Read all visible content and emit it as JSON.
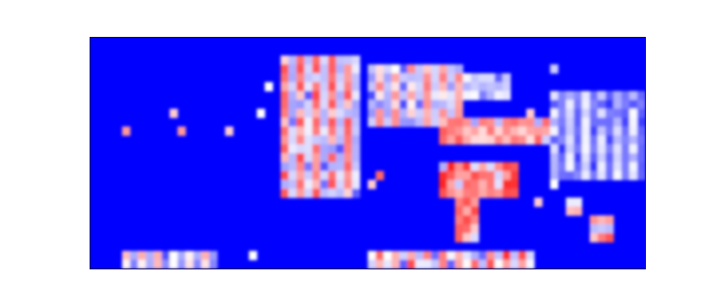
{
  "chart_data": {
    "type": "heatmap",
    "title": "",
    "xlabel": "",
    "ylabel": "",
    "axes_visible": false,
    "grid": false,
    "legend": "none",
    "colormap": {
      "low": "#0000ff",
      "mid": "#ffffff",
      "high": "#ff0000"
    },
    "value_range": [
      0,
      1
    ],
    "rows": 26,
    "cols": 70,
    "features": [
      {
        "kind": "block",
        "name": "harmonic-stack",
        "c0": 24,
        "c1": 33,
        "r0": 2,
        "r1": 17,
        "v": 0.78,
        "stripe": true
      },
      {
        "kind": "block",
        "name": "mid-segments",
        "c0": 35,
        "c1": 46,
        "r0": 3,
        "r1": 9,
        "v": 0.7,
        "stripe": true
      },
      {
        "kind": "block",
        "name": "upper-band",
        "c0": 42,
        "c1": 52,
        "r0": 4,
        "r1": 6,
        "v": 0.45,
        "stripe": false
      },
      {
        "kind": "block",
        "name": "streak-band",
        "c0": 44,
        "c1": 57,
        "r0": 9,
        "r1": 11,
        "v": 0.75,
        "stripe": false
      },
      {
        "kind": "block",
        "name": "diagonal-blob",
        "c0": 44,
        "c1": 53,
        "r0": 14,
        "r1": 17,
        "v": 0.85,
        "stripe": false
      },
      {
        "kind": "block",
        "name": "descending-trail",
        "c0": 46,
        "c1": 48,
        "r0": 17,
        "r1": 22,
        "v": 0.8,
        "stripe": false
      },
      {
        "kind": "block",
        "name": "bottom-burst",
        "c0": 35,
        "c1": 55,
        "r0": 24,
        "r1": 25,
        "v": 0.85,
        "stripe": true
      },
      {
        "kind": "block",
        "name": "right-columns",
        "c0": 58,
        "c1": 70,
        "r0": 6,
        "r1": 15,
        "v": 0.45,
        "stripe": true
      },
      {
        "kind": "block",
        "name": "right-spot-lower",
        "c0": 63,
        "c1": 65,
        "r0": 20,
        "r1": 22,
        "v": 0.8,
        "stripe": false
      },
      {
        "kind": "block",
        "name": "right-spot-mid",
        "c0": 60,
        "c1": 61,
        "r0": 18,
        "r1": 19,
        "v": 0.6,
        "stripe": false
      },
      {
        "kind": "block",
        "name": "left-bottom-dots",
        "c0": 4,
        "c1": 15,
        "r0": 24,
        "r1": 25,
        "v": 0.6,
        "stripe": true
      },
      {
        "kind": "dot",
        "c": 4,
        "r": 10,
        "v": 0.7
      },
      {
        "kind": "dot",
        "c": 10,
        "r": 8,
        "v": 0.6
      },
      {
        "kind": "dot",
        "c": 11,
        "r": 10,
        "v": 0.7
      },
      {
        "kind": "dot",
        "c": 17,
        "r": 10,
        "v": 0.6
      },
      {
        "kind": "dot",
        "c": 21,
        "r": 8,
        "v": 0.5
      },
      {
        "kind": "dot",
        "c": 22,
        "r": 5,
        "v": 0.5
      },
      {
        "kind": "dot",
        "c": 20,
        "r": 24,
        "v": 0.5
      },
      {
        "kind": "dot",
        "c": 36,
        "r": 15,
        "v": 0.8
      },
      {
        "kind": "dot",
        "c": 35,
        "r": 16,
        "v": 0.6
      },
      {
        "kind": "dot",
        "c": 38,
        "r": 3,
        "v": 0.5
      },
      {
        "kind": "dot",
        "c": 55,
        "r": 8,
        "v": 0.6
      },
      {
        "kind": "dot",
        "c": 56,
        "r": 18,
        "v": 0.6
      },
      {
        "kind": "dot",
        "c": 58,
        "r": 3,
        "v": 0.4
      },
      {
        "kind": "dot",
        "c": 58,
        "r": 16,
        "v": 0.5
      }
    ]
  }
}
